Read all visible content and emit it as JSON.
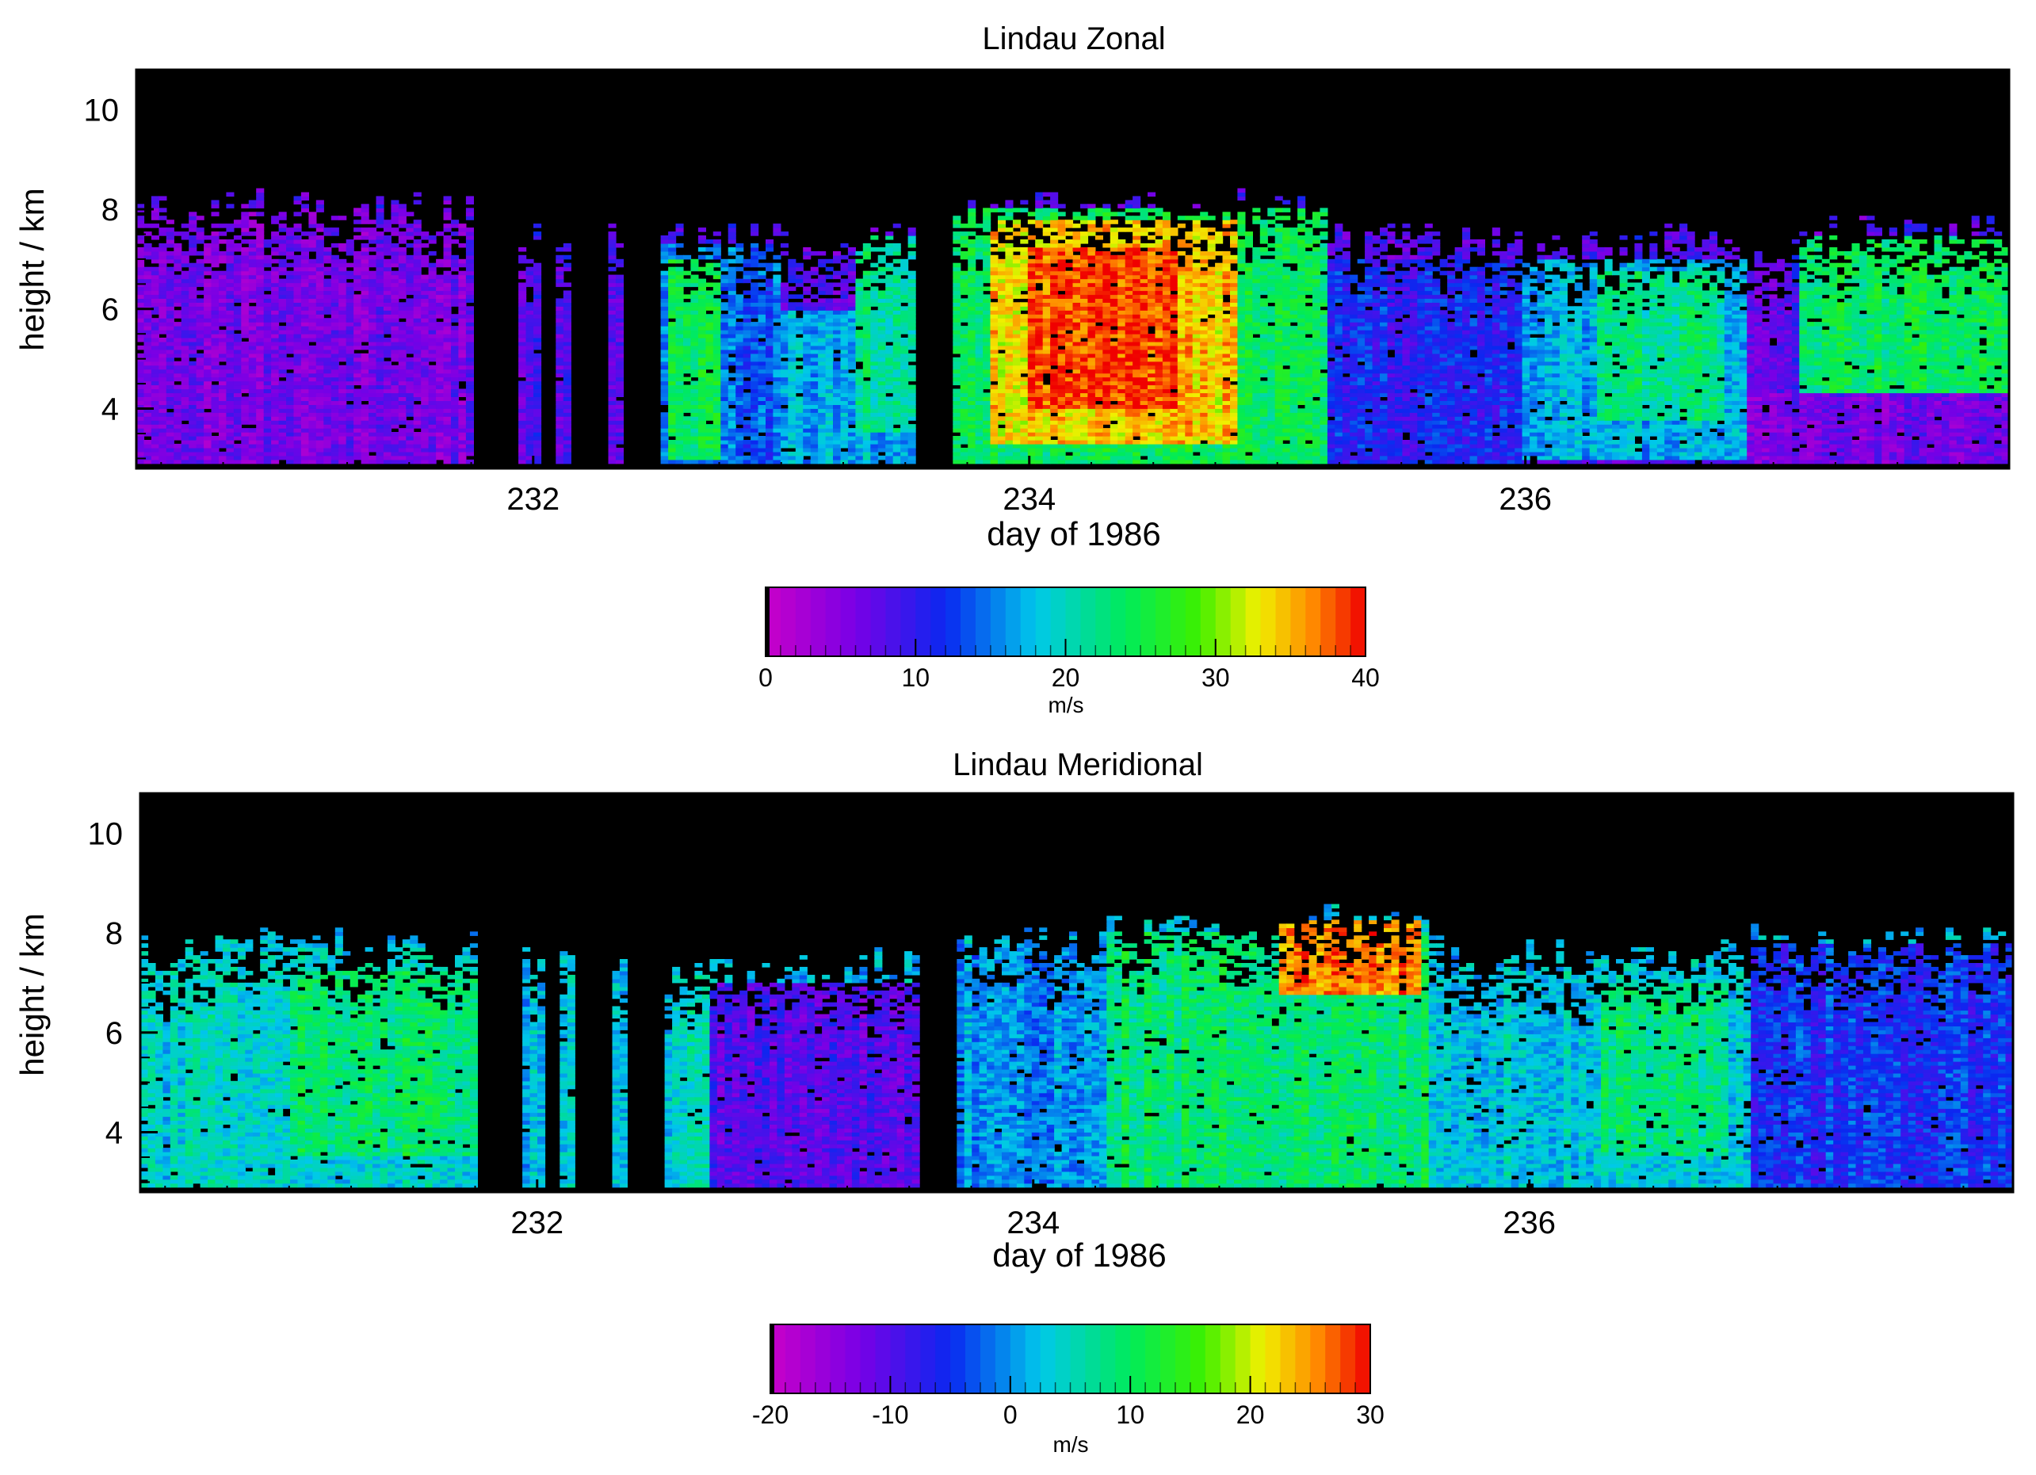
{
  "chart_data": [
    {
      "type": "heatmap",
      "title": "Lindau Zonal",
      "xlabel": "day of 1986",
      "ylabel": "height / km",
      "xlim": [
        230.4,
        237.95
      ],
      "ylim": [
        2.8,
        10.8
      ],
      "x_ticks": [
        232,
        234,
        236
      ],
      "y_ticks": [
        4,
        6,
        8,
        10
      ],
      "data_bottom_km": 2.9,
      "gaps_day": [
        [
          231.77,
          231.93
        ],
        [
          232.02,
          232.1
        ],
        [
          232.15,
          232.3
        ],
        [
          232.35,
          232.5
        ],
        [
          233.54,
          233.68
        ]
      ],
      "colorbar": {
        "label": "m/s",
        "min": 0,
        "max": 40,
        "ticks": [
          0,
          10,
          20,
          30,
          40
        ]
      },
      "field": {
        "base_value": 8,
        "base_top_km": 7.3,
        "regions": [
          {
            "x0": 230.4,
            "x1": 231.8,
            "y0": 2.9,
            "y1": 8.0,
            "value": 6
          },
          {
            "x0": 232.5,
            "x1": 233.0,
            "y0": 2.9,
            "y1": 7.3,
            "value": 14
          },
          {
            "x0": 232.55,
            "x1": 232.75,
            "y0": 3.0,
            "y1": 7.0,
            "value": 24
          },
          {
            "x0": 233.0,
            "x1": 233.55,
            "y0": 2.9,
            "y1": 6.0,
            "value": 17
          },
          {
            "x0": 233.3,
            "x1": 233.55,
            "y0": 3.5,
            "y1": 7.5,
            "value": 22
          },
          {
            "x0": 233.68,
            "x1": 235.2,
            "y0": 2.9,
            "y1": 8.0,
            "value": 24
          },
          {
            "x0": 233.85,
            "x1": 234.85,
            "y0": 3.3,
            "y1": 7.8,
            "value": 34
          },
          {
            "x0": 234.0,
            "x1": 234.6,
            "y0": 4.0,
            "y1": 7.2,
            "value": 38
          },
          {
            "x0": 235.2,
            "x1": 236.0,
            "y0": 2.9,
            "y1": 7.0,
            "value": 11
          },
          {
            "x0": 236.0,
            "x1": 236.9,
            "y0": 3.0,
            "y1": 7.0,
            "value": 17
          },
          {
            "x0": 236.3,
            "x1": 236.8,
            "y0": 3.8,
            "y1": 6.8,
            "value": 22
          },
          {
            "x0": 237.1,
            "x1": 237.95,
            "y0": 4.3,
            "y1": 7.5,
            "value": 24
          },
          {
            "x0": 236.9,
            "x1": 237.95,
            "y0": 2.9,
            "y1": 4.3,
            "value": 6
          }
        ]
      }
    },
    {
      "type": "heatmap",
      "title": "Lindau Meridional",
      "xlabel": "day of 1986",
      "ylabel": "height / km",
      "xlim": [
        230.4,
        237.95
      ],
      "ylim": [
        2.8,
        10.8
      ],
      "x_ticks": [
        232,
        234,
        236
      ],
      "y_ticks": [
        4,
        6,
        8,
        10
      ],
      "data_bottom_km": 2.9,
      "gaps_day": [
        [
          231.77,
          231.93
        ],
        [
          232.02,
          232.1
        ],
        [
          232.15,
          232.3
        ],
        [
          232.35,
          232.5
        ],
        [
          233.54,
          233.68
        ]
      ],
      "colorbar": {
        "label": "m/s",
        "min": -20,
        "max": 30,
        "ticks": [
          -20,
          -10,
          0,
          10,
          20,
          30
        ]
      },
      "field": {
        "base_value": 2,
        "base_top_km": 7.3,
        "regions": [
          {
            "x0": 230.4,
            "x1": 231.8,
            "y0": 2.9,
            "y1": 7.7,
            "value": 4
          },
          {
            "x0": 231.0,
            "x1": 231.8,
            "y0": 3.5,
            "y1": 7.2,
            "value": 9
          },
          {
            "x0": 232.5,
            "x1": 233.55,
            "y0": 2.9,
            "y1": 7.0,
            "value": -10
          },
          {
            "x0": 232.5,
            "x1": 232.7,
            "y0": 2.9,
            "y1": 7.2,
            "value": 4
          },
          {
            "x0": 233.68,
            "x1": 234.3,
            "y0": 2.9,
            "y1": 7.8,
            "value": 0
          },
          {
            "x0": 234.3,
            "x1": 235.6,
            "y0": 2.9,
            "y1": 8.0,
            "value": 9
          },
          {
            "x0": 235.0,
            "x1": 235.55,
            "y0": 6.8,
            "y1": 8.3,
            "value": 26
          },
          {
            "x0": 235.6,
            "x1": 236.9,
            "y0": 2.9,
            "y1": 7.5,
            "value": 3
          },
          {
            "x0": 236.3,
            "x1": 236.8,
            "y0": 3.5,
            "y1": 7.0,
            "value": 8
          },
          {
            "x0": 236.9,
            "x1": 237.95,
            "y0": 2.9,
            "y1": 7.8,
            "value": -5
          }
        ]
      }
    }
  ]
}
